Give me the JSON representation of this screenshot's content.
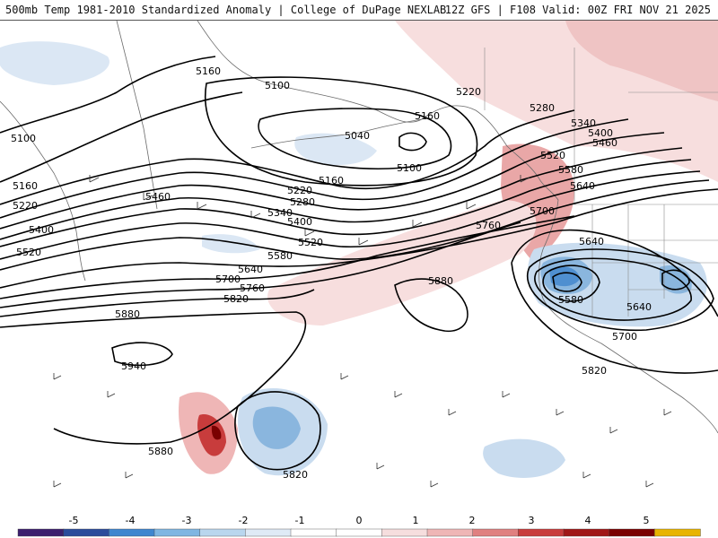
{
  "header": {
    "title_left": "500mb Temp 1981-2010 Standardized Anomaly | College of DuPage NEXLAB",
    "title_right": "12Z GFS | F108 Valid: 00Z FRI NOV 21 2025"
  },
  "contours": {
    "labels": [
      "5040",
      "5100",
      "5100",
      "5100",
      "5160",
      "5160",
      "5160",
      "5160",
      "5220",
      "5220",
      "5220",
      "5280",
      "5280",
      "5340",
      "5340",
      "5400",
      "5400",
      "5400",
      "5460",
      "5460",
      "5520",
      "5520",
      "5520",
      "5580",
      "5580",
      "5580",
      "5640",
      "5640",
      "5640",
      "5640",
      "5700",
      "5700",
      "5700",
      "5760",
      "5760",
      "5820",
      "5820",
      "5820",
      "5880",
      "5880",
      "5880",
      "5940"
    ]
  },
  "colorbar": {
    "ticks": [
      "-5",
      "-4",
      "-3",
      "-2",
      "-1",
      "0",
      "1",
      "2",
      "3",
      "4",
      "5"
    ],
    "colors": [
      "#3c1f6e",
      "#2b4b9b",
      "#3f86cf",
      "#7fb6e2",
      "#b9d6ee",
      "#dfeaf6",
      "#ffffff",
      "#ffffff",
      "#f6dede",
      "#efb6b6",
      "#e08080",
      "#c83c3c",
      "#a01818",
      "#7a0000",
      "#e8b400"
    ]
  }
}
